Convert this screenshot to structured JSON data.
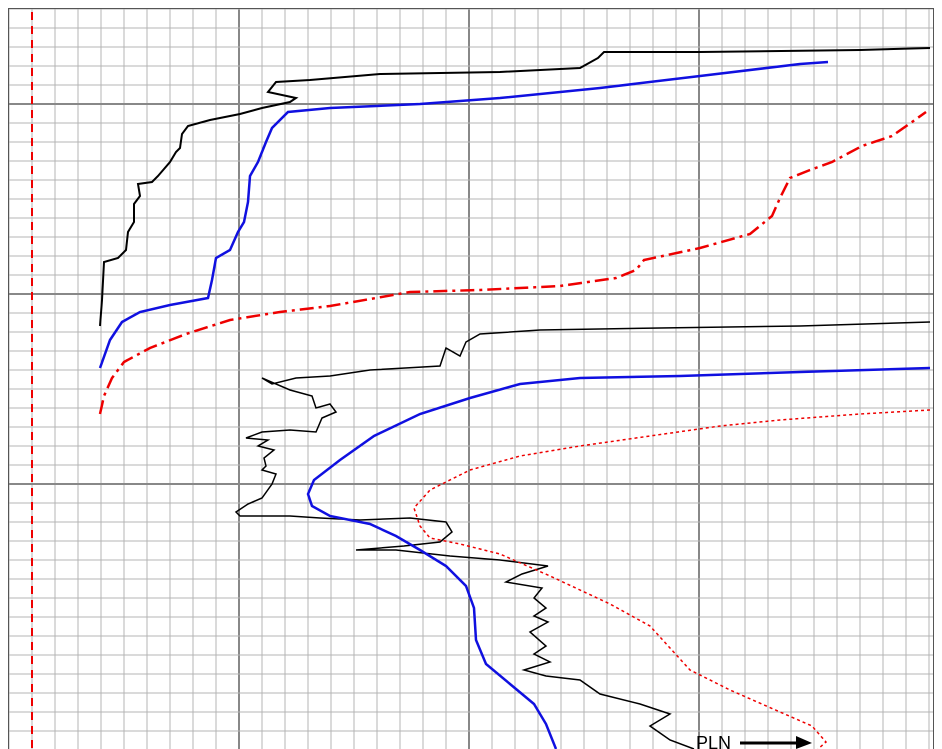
{
  "annotation": {
    "label": "PLN"
  }
}
